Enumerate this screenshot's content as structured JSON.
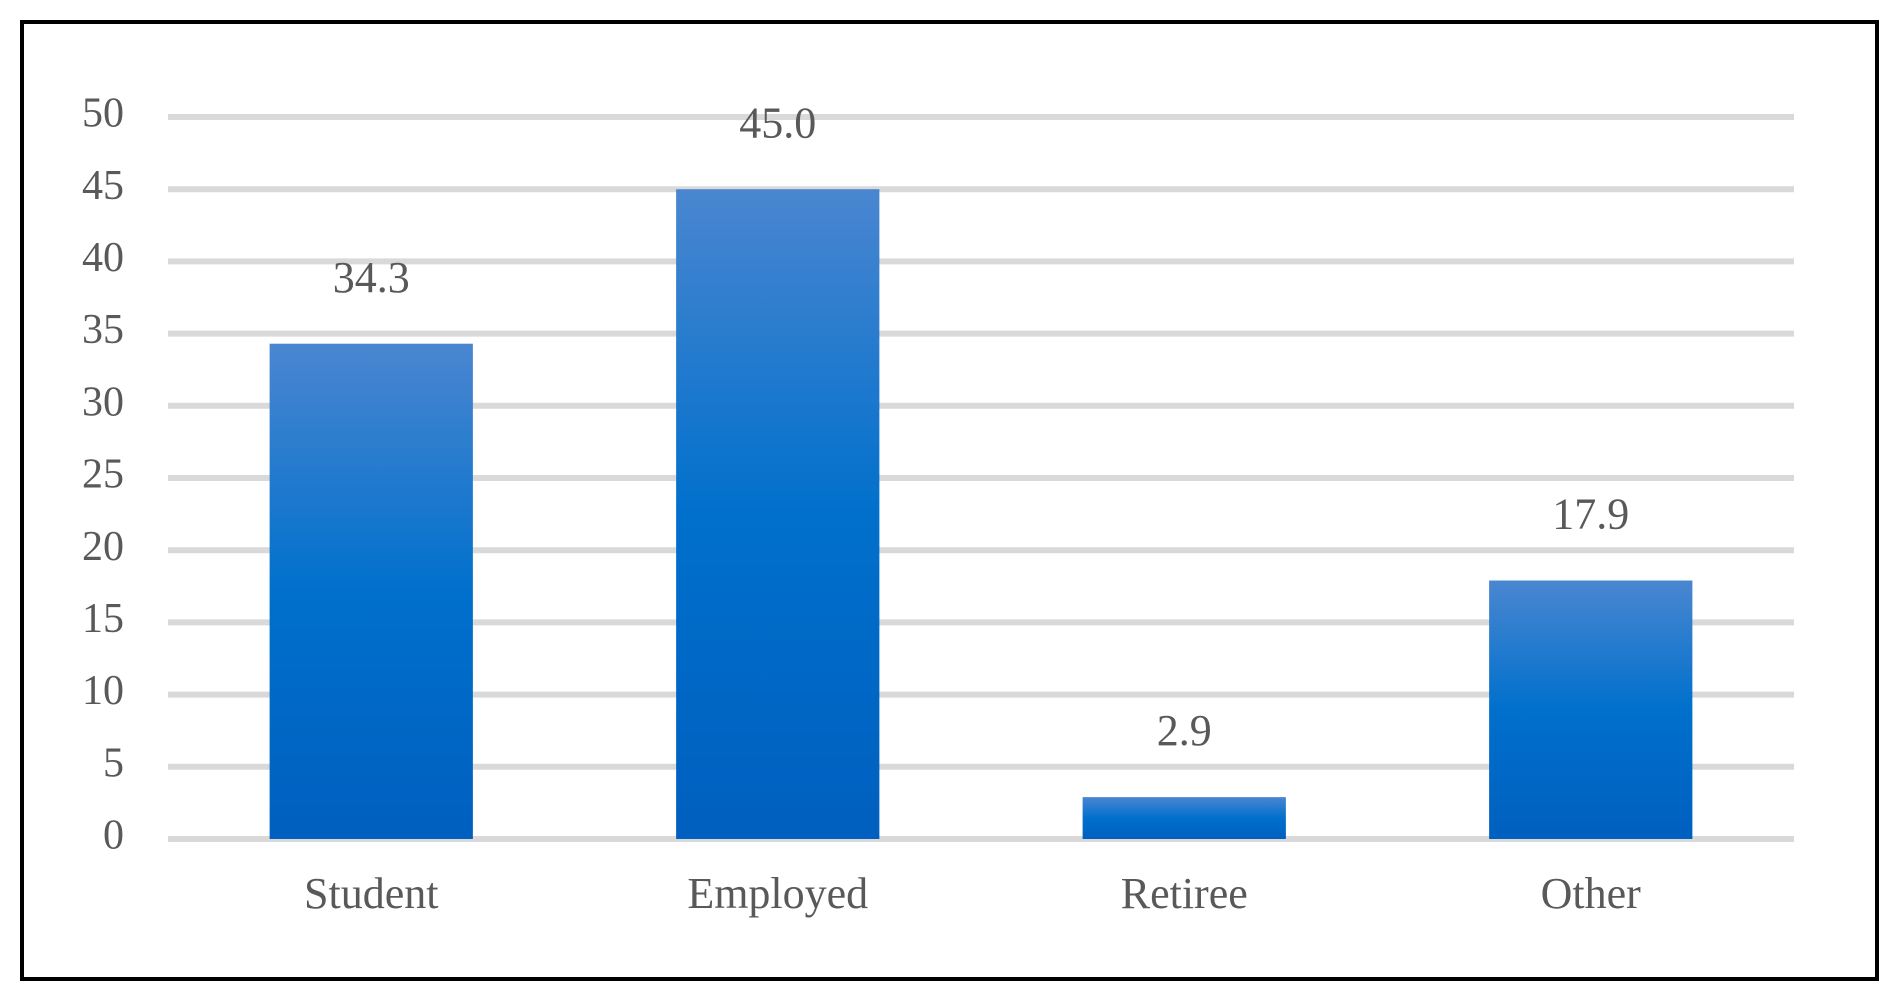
{
  "chart_data": {
    "type": "bar",
    "categories": [
      "Student",
      "Employed",
      "Retiree",
      "Other"
    ],
    "values": [
      34.3,
      45.0,
      2.9,
      17.9
    ],
    "value_labels": [
      "34.3",
      "45.0",
      "2.9",
      "17.9"
    ],
    "color": "#0070cc",
    "ylim": [
      0,
      50
    ],
    "yticks": [
      0,
      5,
      10,
      15,
      20,
      25,
      30,
      35,
      40,
      45,
      50
    ],
    "grid": true
  }
}
